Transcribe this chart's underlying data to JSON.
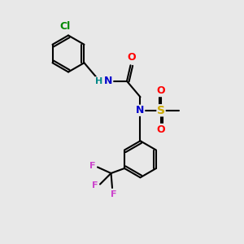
{
  "bg_color": "#e8e8e8",
  "bond_color": "#000000",
  "bond_width": 1.5,
  "atom_colors": {
    "C": "#000000",
    "N": "#0000cc",
    "O": "#ff0000",
    "S": "#ccaa00",
    "Cl": "#008800",
    "F": "#cc44cc",
    "H": "#008888"
  },
  "font_size": 8,
  "figsize": [
    3.0,
    3.0
  ],
  "dpi": 100
}
